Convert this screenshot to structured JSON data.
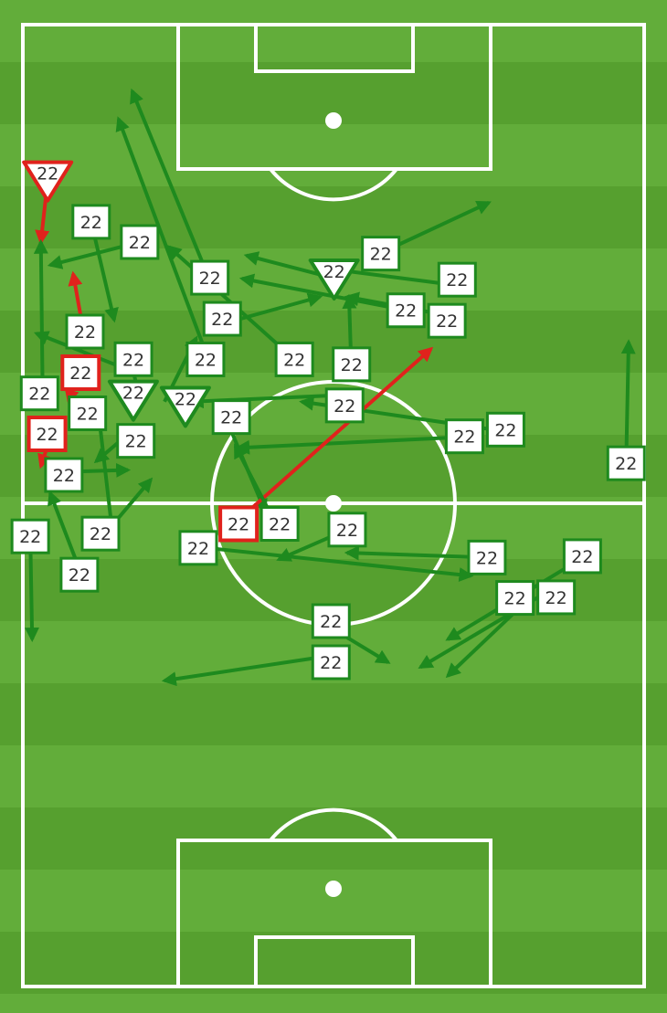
{
  "pitch": {
    "orientation": "vertical, attacking upward",
    "stripe_colors": [
      "#62ad3a",
      "#56a02f"
    ],
    "line_color": "#ffffff",
    "x_range": [
      0,
      100
    ],
    "y_range": [
      0,
      100
    ]
  },
  "colors": {
    "success": "#1e8a1e",
    "fail": "#e0221c",
    "marker_fill": "#ffffff",
    "label": "#333333"
  },
  "chart_data": {
    "type": "pass-map",
    "passes": [
      {
        "label": "22",
        "shape": "triangle",
        "outcome": "fail",
        "start": [
          4.0,
          16.2
        ],
        "end": [
          2.9,
          22.6
        ]
      },
      {
        "label": "22",
        "shape": "square",
        "outcome": "success",
        "start": [
          11.0,
          20.5
        ],
        "end": [
          14.7,
          30.7
        ]
      },
      {
        "label": "22",
        "shape": "square",
        "outcome": "success",
        "start": [
          18.8,
          22.6
        ],
        "end": [
          4.4,
          25.0
        ]
      },
      {
        "label": "22",
        "shape": "square",
        "outcome": "success",
        "start": [
          30.1,
          26.6
        ],
        "end": [
          17.6,
          6.9
        ]
      },
      {
        "label": "22",
        "shape": "triangle",
        "outcome": "success",
        "start": [
          50.3,
          26.4
        ],
        "end": [
          36.0,
          24.0
        ]
      },
      {
        "label": "22",
        "shape": "square",
        "outcome": "success",
        "start": [
          57.4,
          23.8
        ],
        "end": [
          75.0,
          18.5
        ]
      },
      {
        "label": "22",
        "shape": "square",
        "outcome": "success",
        "start": [
          69.9,
          27.1
        ],
        "end": [
          50.7,
          25.5
        ]
      },
      {
        "label": "22",
        "shape": "square",
        "outcome": "success",
        "start": [
          61.8,
          29.7
        ],
        "end": [
          35.3,
          26.4
        ]
      },
      {
        "label": "22",
        "shape": "square",
        "outcome": "success",
        "start": [
          68.1,
          30.2
        ],
        "end": [
          52.2,
          28.3
        ]
      },
      {
        "label": "22",
        "shape": "square",
        "outcome": "success",
        "start": [
          32.1,
          31.1
        ],
        "end": [
          47.8,
          28.3
        ]
      },
      {
        "label": "22",
        "shape": "square",
        "outcome": "success",
        "start": [
          29.4,
          34.0
        ],
        "end": [
          15.4,
          9.8
        ]
      },
      {
        "label": "22",
        "shape": "square",
        "outcome": "success",
        "start": [
          10.0,
          32.8
        ],
        "end": [
          8.1,
          25.9
        ],
        "arrow_outcome": "fail"
      },
      {
        "label": "22",
        "shape": "square",
        "outcome": "fail",
        "start": [
          8.8,
          35.8
        ],
        "end": [
          7.4,
          39.2
        ]
      },
      {
        "label": "22",
        "shape": "square",
        "outcome": "success",
        "start": [
          43.7,
          34.8
        ],
        "end": [
          23.5,
          23.1
        ]
      },
      {
        "label": "22",
        "shape": "square",
        "outcome": "success",
        "start": [
          52.9,
          36.4
        ],
        "end": [
          52.5,
          28.3
        ]
      },
      {
        "label": "22",
        "shape": "square",
        "outcome": "success",
        "start": [
          51.8,
          38.5
        ],
        "end": [
          27.2,
          39.2
        ]
      },
      {
        "label": "22",
        "shape": "square",
        "outcome": "success",
        "start": [
          17.8,
          36.1
        ],
        "end": [
          2.2,
          32.1
        ]
      },
      {
        "label": "22",
        "shape": "square",
        "outcome": "success",
        "start": [
          3.2,
          38.8
        ],
        "end": [
          2.9,
          22.6
        ]
      },
      {
        "label": "22",
        "shape": "square",
        "outcome": "success",
        "start": [
          12.1,
          39.9
        ],
        "end": [
          14.7,
          54.4
        ]
      },
      {
        "label": "22",
        "shape": "triangle",
        "outcome": "success",
        "start": [
          19.1,
          39.8
        ],
        "end": [
          16.9,
          33.5
        ]
      },
      {
        "label": "22",
        "shape": "triangle",
        "outcome": "success",
        "start": [
          22.8,
          39.2
        ],
        "end": [
          27.9,
          32.6
        ]
      },
      {
        "label": "22",
        "shape": "square",
        "outcome": "success",
        "start": [
          32.6,
          40.8
        ],
        "end": [
          39.0,
          50.6
        ]
      },
      {
        "label": "22",
        "shape": "square",
        "outcome": "success",
        "start": [
          73.1,
          42.8
        ],
        "end": [
          34.6,
          44.0
        ]
      },
      {
        "label": "22",
        "shape": "square",
        "outcome": "success",
        "start": [
          75.7,
          42.1
        ],
        "end": [
          44.9,
          39.2
        ]
      },
      {
        "label": "22",
        "shape": "square",
        "outcome": "fail",
        "start": [
          4.7,
          42.4
        ],
        "end": [
          2.9,
          45.9
        ]
      },
      {
        "label": "22",
        "shape": "square",
        "outcome": "success",
        "start": [
          6.6,
          46.5
        ],
        "end": [
          16.9,
          46.3
        ]
      },
      {
        "label": "22",
        "shape": "square",
        "outcome": "success",
        "start": [
          18.7,
          41.6
        ],
        "end": [
          11.8,
          45.4
        ]
      },
      {
        "label": "22",
        "shape": "square",
        "outcome": "success",
        "start": [
          97.1,
          45.6
        ],
        "end": [
          97.5,
          33.0
        ]
      },
      {
        "label": "22",
        "shape": "square",
        "outcome": "fail",
        "start": [
          34.0,
          51.9
        ],
        "end": [
          65.7,
          33.7
        ]
      },
      {
        "label": "22",
        "shape": "square",
        "outcome": "success",
        "start": [
          40.7,
          51.9
        ],
        "end": [
          34.2,
          43.8
        ]
      },
      {
        "label": "22",
        "shape": "square",
        "outcome": "success",
        "start": [
          29.6,
          54.4
        ],
        "end": [
          72.1,
          57.3
        ]
      },
      {
        "label": "22",
        "shape": "square",
        "outcome": "success",
        "start": [
          52.2,
          52.5
        ],
        "end": [
          41.2,
          55.6
        ]
      },
      {
        "label": "22",
        "shape": "square",
        "outcome": "success",
        "start": [
          1.2,
          53.2
        ],
        "end": [
          1.5,
          63.9
        ]
      },
      {
        "label": "22",
        "shape": "square",
        "outcome": "success",
        "start": [
          9.1,
          56.6
        ],
        "end": [
          4.4,
          48.7
        ]
      },
      {
        "label": "22",
        "shape": "square",
        "outcome": "success",
        "start": [
          12.5,
          53.5
        ],
        "end": [
          20.6,
          47.3
        ]
      },
      {
        "label": "22",
        "shape": "square",
        "outcome": "success",
        "start": [
          74.7,
          55.4
        ],
        "end": [
          52.2,
          54.9
        ]
      },
      {
        "label": "22",
        "shape": "square",
        "outcome": "success",
        "start": [
          89.7,
          55.6
        ],
        "end": [
          68.4,
          63.9
        ]
      },
      {
        "label": "22",
        "shape": "square",
        "outcome": "success",
        "start": [
          83.8,
          59.2
        ],
        "end": [
          64.0,
          66.8
        ]
      },
      {
        "label": "22",
        "shape": "square",
        "outcome": "success",
        "start": [
          81.6,
          59.6
        ],
        "end": [
          68.4,
          67.7
        ]
      },
      {
        "label": "22",
        "shape": "square",
        "outcome": "success",
        "start": [
          49.6,
          62.7
        ],
        "end": [
          58.8,
          66.3
        ]
      },
      {
        "label": "22",
        "shape": "square",
        "outcome": "success",
        "start": [
          49.6,
          65.6
        ],
        "end": [
          22.8,
          68.2
        ]
      }
    ]
  }
}
